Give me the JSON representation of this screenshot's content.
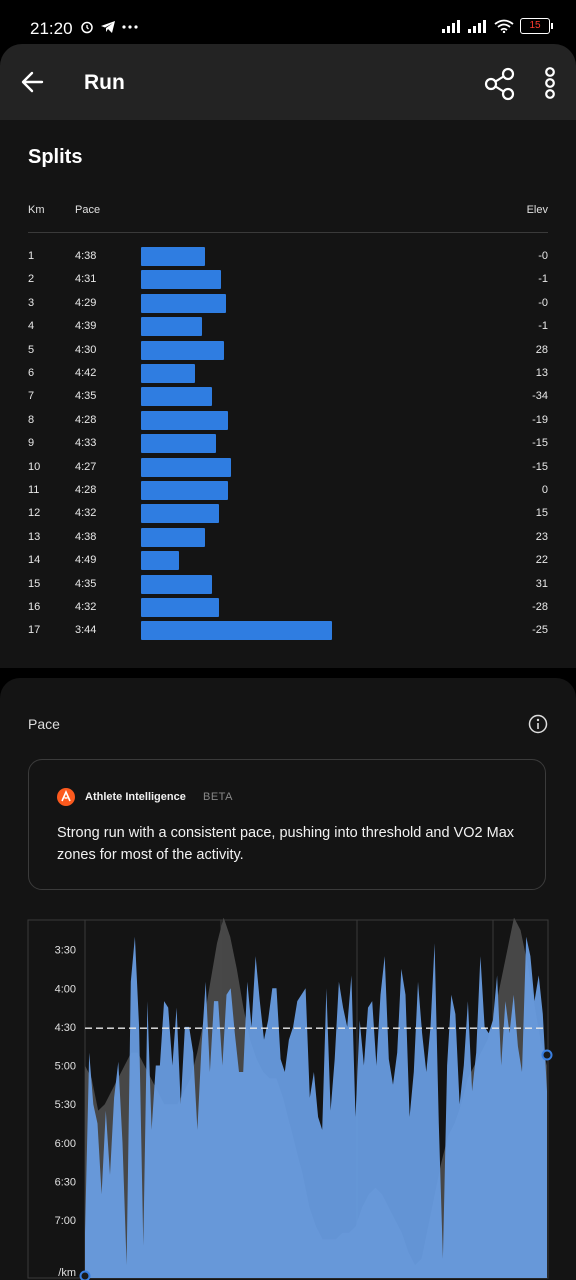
{
  "status_bar": {
    "time": "21:20",
    "battery": "15",
    "icons": [
      "alarm-icon",
      "telegram-icon",
      "more-dots-icon",
      "signal-icon",
      "signal-icon",
      "wifi-icon",
      "battery-icon"
    ]
  },
  "header": {
    "title": "Run",
    "back_icon": "arrow-left-icon",
    "share_icon": "share-icon",
    "more_icon": "more-vertical-icon"
  },
  "splits": {
    "title": "Splits",
    "columns": {
      "km": "Km",
      "pace": "Pace",
      "elev": "Elev"
    },
    "bar_color": "#2f7de1",
    "rows": [
      {
        "km": "1",
        "pace": "4:38",
        "elev": "-0"
      },
      {
        "km": "2",
        "pace": "4:31",
        "elev": "-1"
      },
      {
        "km": "3",
        "pace": "4:29",
        "elev": "-0"
      },
      {
        "km": "4",
        "pace": "4:39",
        "elev": "-1"
      },
      {
        "km": "5",
        "pace": "4:30",
        "elev": "28"
      },
      {
        "km": "6",
        "pace": "4:42",
        "elev": "13"
      },
      {
        "km": "7",
        "pace": "4:35",
        "elev": "-34"
      },
      {
        "km": "8",
        "pace": "4:28",
        "elev": "-19"
      },
      {
        "km": "9",
        "pace": "4:33",
        "elev": "-15"
      },
      {
        "km": "10",
        "pace": "4:27",
        "elev": "-15"
      },
      {
        "km": "11",
        "pace": "4:28",
        "elev": "0"
      },
      {
        "km": "12",
        "pace": "4:32",
        "elev": "15"
      },
      {
        "km": "13",
        "pace": "4:38",
        "elev": "23"
      },
      {
        "km": "14",
        "pace": "4:49",
        "elev": "22"
      },
      {
        "km": "15",
        "pace": "4:35",
        "elev": "31"
      },
      {
        "km": "16",
        "pace": "4:32",
        "elev": "-28"
      },
      {
        "km": "17",
        "pace": "3:44",
        "elev": "-25"
      }
    ]
  },
  "pace_section": {
    "title": "Pace",
    "info_icon": "info-icon",
    "athlete_intelligence": {
      "logo_icon": "strava-logo-icon",
      "name": "Athlete Intelligence",
      "badge": "BETA",
      "summary": "Strong run with a consistent pace, pushing into threshold and VO2 Max zones for most of the activity."
    }
  },
  "chart_data": {
    "type": "area",
    "title": "",
    "xlabel": "",
    "ylabel": "/km",
    "y_ticks": [
      "3:30",
      "4:00",
      "4:30",
      "5:00",
      "5:30",
      "6:00",
      "6:30",
      "7:00"
    ],
    "y_axis_unit": "/km",
    "y_range_seconds_per_km": [
      187,
      465
    ],
    "y_inverted": true,
    "average_pace_seconds": 271,
    "grid": true,
    "series": [
      {
        "color": "#6aa0e6",
        "values": [
          430,
          290,
          330,
          345,
          400,
          335,
          385,
          325,
          297,
          360,
          455,
          235,
          200,
          270,
          440,
          250,
          350,
          300,
          300,
          250,
          255,
          300,
          255,
          330,
          270,
          270,
          290,
          350,
          285,
          235,
          305,
          250,
          250,
          300,
          245,
          240,
          275,
          305,
          305,
          235,
          270,
          215,
          250,
          280,
          265,
          240,
          240,
          295,
          305,
          280,
          270,
          250,
          245,
          240,
          325,
          305,
          340,
          350,
          240,
          335,
          295,
          235,
          255,
          270,
          230,
          340,
          265,
          300,
          255,
          250,
          300,
          245,
          215,
          295,
          315,
          290,
          225,
          245,
          340,
          305,
          235,
          275,
          305,
          270,
          205,
          345,
          450,
          300,
          245,
          260,
          330,
          300,
          250,
          320,
          290,
          215,
          270,
          275,
          265,
          230,
          300,
          250,
          275,
          245,
          285,
          305,
          200,
          215,
          250,
          230,
          260,
          320
        ]
      },
      {
        "color": "#4a4a4a",
        "values": [
          300,
          310,
          335,
          330,
          320,
          310,
          300,
          290,
          290,
          300,
          310,
          320,
          330,
          330,
          330,
          320,
          310,
          290,
          265,
          235,
          205,
          185,
          200,
          225,
          255,
          280,
          295,
          305,
          310,
          310,
          325,
          345,
          365,
          385,
          410,
          425,
          435,
          435,
          435,
          430,
          430,
          425,
          410,
          400,
          395,
          400,
          410,
          420,
          430,
          445,
          455,
          450,
          425,
          400,
          375,
          355,
          345,
          330,
          310,
          300,
          290,
          280,
          260,
          235,
          210,
          185,
          195,
          220,
          250,
          280,
          300
        ]
      }
    ]
  }
}
